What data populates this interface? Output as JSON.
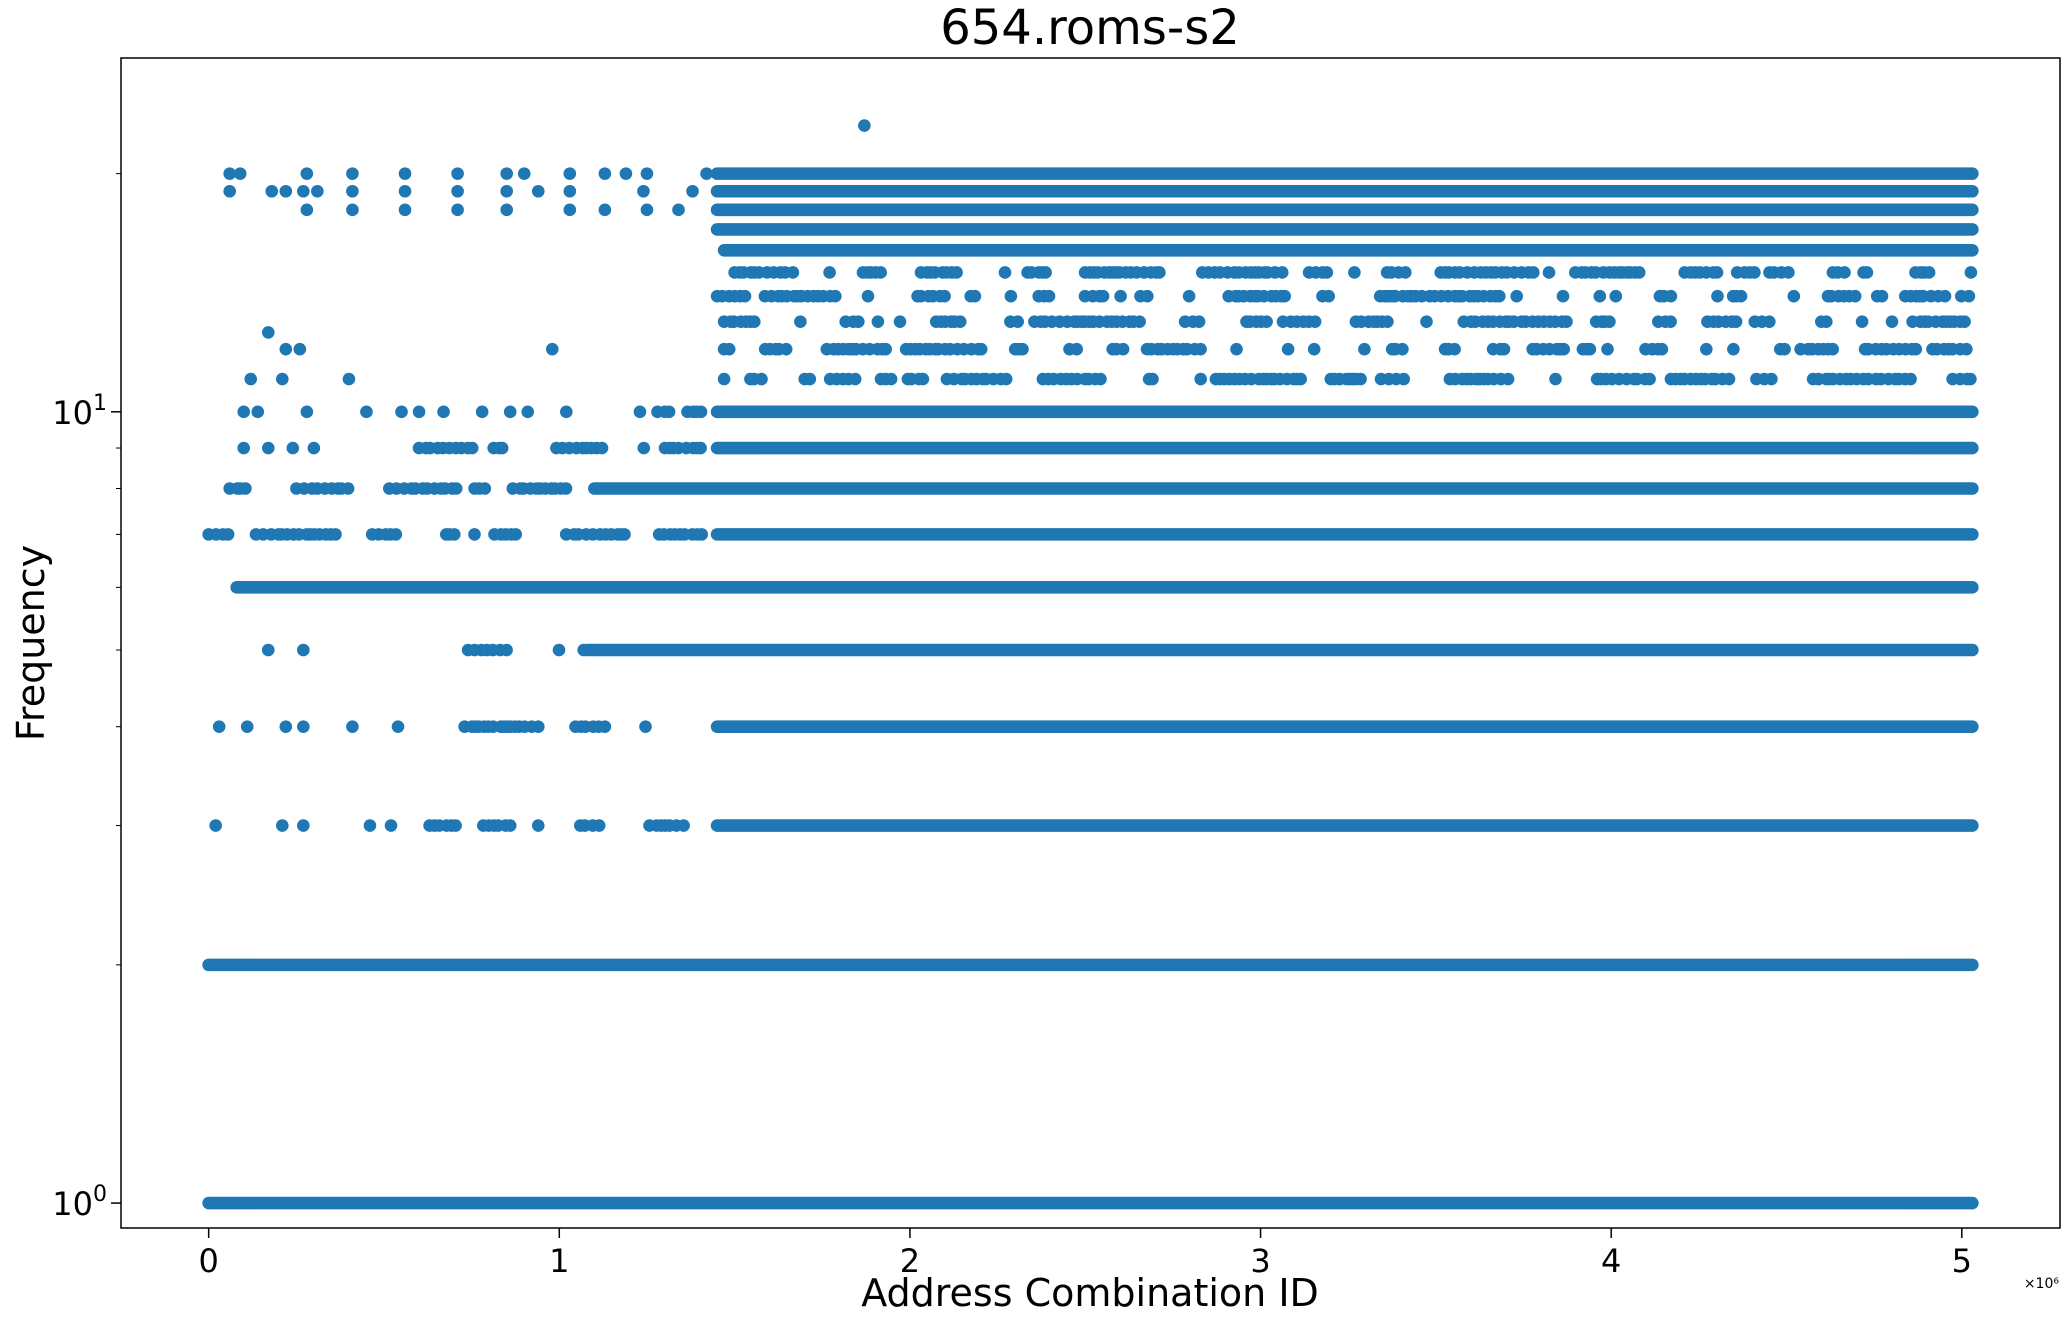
{
  "chart_data": {
    "type": "scatter",
    "title": "654.roms-s2",
    "xlabel": "Address Combination ID",
    "ylabel": "Frequency",
    "x_offset_label": "×10⁶",
    "xscale": "linear",
    "yscale": "log",
    "xlim": [
      -250000,
      5280000
    ],
    "ylim": [
      0.93,
      28
    ],
    "grid": false,
    "legend": "none",
    "color": "#1f77b4",
    "x_ticks": [
      {
        "value": 0,
        "label": "0"
      },
      {
        "value": 1000000,
        "label": "1"
      },
      {
        "value": 2000000,
        "label": "2"
      },
      {
        "value": 3000000,
        "label": "3"
      },
      {
        "value": 4000000,
        "label": "4"
      },
      {
        "value": 5000000,
        "label": "5"
      }
    ],
    "y_major_ticks": [
      {
        "value": 1,
        "base": "10",
        "exp": "0"
      },
      {
        "value": 10,
        "base": "10",
        "exp": "1"
      }
    ],
    "y_minor_ticks": [
      2,
      3,
      4,
      5,
      6,
      7,
      8,
      9,
      20
    ],
    "series": [
      {
        "segments": [
          {
            "y": 1,
            "x_from": 0,
            "x_to": 5030000
          },
          {
            "y": 2,
            "x_from": 0,
            "x_to": 5030000
          },
          {
            "y": 3,
            "x_from": 1450000,
            "x_to": 5030000
          },
          {
            "y": 3,
            "x_from": 1060000,
            "x_to": 1450000,
            "sparse": true
          },
          {
            "y": 3,
            "x_from": 630000,
            "x_to": 850000,
            "sparse": true
          },
          {
            "y": 4,
            "x_from": 1450000,
            "x_to": 5030000
          },
          {
            "y": 4,
            "x_from": 730000,
            "x_to": 1250000,
            "sparse": true
          },
          {
            "y": 5,
            "x_from": 1080000,
            "x_to": 5030000
          },
          {
            "y": 5,
            "x_from": 740000,
            "x_to": 1080000,
            "sparse": true
          },
          {
            "y": 6,
            "x_from": 80000,
            "x_to": 5030000
          },
          {
            "y": 7,
            "x_from": 1450000,
            "x_to": 5030000
          },
          {
            "y": 7,
            "x_from": 0,
            "x_to": 1450000,
            "sparse": true
          },
          {
            "y": 8,
            "x_from": 1100000,
            "x_to": 5030000
          },
          {
            "y": 8,
            "x_from": 60000,
            "x_to": 1100000,
            "sparse": true
          },
          {
            "y": 9,
            "x_from": 1450000,
            "x_to": 5030000
          },
          {
            "y": 9,
            "x_from": 600000,
            "x_to": 1450000,
            "sparse": true
          },
          {
            "y": 10,
            "x_from": 1450000,
            "x_to": 5030000
          },
          {
            "y": 10,
            "x_from": 1280000,
            "x_to": 1450000,
            "sparse": true
          },
          {
            "y": 11,
            "x_from": 1470000,
            "x_to": 5030000,
            "sparse": true
          },
          {
            "y": 12,
            "x_from": 1470000,
            "x_to": 5030000,
            "sparse": true
          },
          {
            "y": 13,
            "x_from": 1470000,
            "x_to": 5030000,
            "sparse": true
          },
          {
            "y": 14,
            "x_from": 1450000,
            "x_to": 5030000,
            "sparse": true
          },
          {
            "y": 15,
            "x_from": 1500000,
            "x_to": 5030000,
            "sparse": true
          },
          {
            "y": 16,
            "x_from": 1470000,
            "x_to": 5030000
          },
          {
            "y": 17,
            "x_from": 1450000,
            "x_to": 5030000
          },
          {
            "y": 18,
            "x_from": 1450000,
            "x_to": 5030000
          },
          {
            "y": 19,
            "x_from": 1450000,
            "x_to": 5030000
          },
          {
            "y": 20,
            "x_from": 1450000,
            "x_to": 5030000
          }
        ],
        "points": [
          {
            "x": 1870000,
            "y": 23
          },
          {
            "x": 60000,
            "y": 20
          },
          {
            "x": 90000,
            "y": 20
          },
          {
            "x": 280000,
            "y": 20
          },
          {
            "x": 410000,
            "y": 20
          },
          {
            "x": 560000,
            "y": 20
          },
          {
            "x": 710000,
            "y": 20
          },
          {
            "x": 850000,
            "y": 20
          },
          {
            "x": 900000,
            "y": 20
          },
          {
            "x": 1030000,
            "y": 20
          },
          {
            "x": 1130000,
            "y": 20
          },
          {
            "x": 1190000,
            "y": 20
          },
          {
            "x": 1250000,
            "y": 20
          },
          {
            "x": 1420000,
            "y": 20
          },
          {
            "x": 60000,
            "y": 19
          },
          {
            "x": 180000,
            "y": 19
          },
          {
            "x": 220000,
            "y": 19
          },
          {
            "x": 270000,
            "y": 19
          },
          {
            "x": 310000,
            "y": 19
          },
          {
            "x": 410000,
            "y": 19
          },
          {
            "x": 560000,
            "y": 19
          },
          {
            "x": 710000,
            "y": 19
          },
          {
            "x": 850000,
            "y": 19
          },
          {
            "x": 940000,
            "y": 19
          },
          {
            "x": 1030000,
            "y": 19
          },
          {
            "x": 1240000,
            "y": 19
          },
          {
            "x": 1380000,
            "y": 19
          },
          {
            "x": 280000,
            "y": 18
          },
          {
            "x": 410000,
            "y": 18
          },
          {
            "x": 560000,
            "y": 18
          },
          {
            "x": 710000,
            "y": 18
          },
          {
            "x": 850000,
            "y": 18
          },
          {
            "x": 1030000,
            "y": 18
          },
          {
            "x": 1130000,
            "y": 18
          },
          {
            "x": 1250000,
            "y": 18
          },
          {
            "x": 1340000,
            "y": 18
          },
          {
            "x": 170000,
            "y": 12.6
          },
          {
            "x": 220000,
            "y": 12
          },
          {
            "x": 260000,
            "y": 12
          },
          {
            "x": 980000,
            "y": 12
          },
          {
            "x": 120000,
            "y": 11
          },
          {
            "x": 210000,
            "y": 11
          },
          {
            "x": 400000,
            "y": 11
          },
          {
            "x": 100000,
            "y": 10
          },
          {
            "x": 140000,
            "y": 10
          },
          {
            "x": 280000,
            "y": 10
          },
          {
            "x": 450000,
            "y": 10
          },
          {
            "x": 550000,
            "y": 10
          },
          {
            "x": 600000,
            "y": 10
          },
          {
            "x": 670000,
            "y": 10
          },
          {
            "x": 780000,
            "y": 10
          },
          {
            "x": 860000,
            "y": 10
          },
          {
            "x": 910000,
            "y": 10
          },
          {
            "x": 1020000,
            "y": 10
          },
          {
            "x": 1230000,
            "y": 10
          },
          {
            "x": 100000,
            "y": 9
          },
          {
            "x": 170000,
            "y": 9
          },
          {
            "x": 240000,
            "y": 9
          },
          {
            "x": 300000,
            "y": 9
          },
          {
            "x": 170000,
            "y": 5
          },
          {
            "x": 270000,
            "y": 5
          },
          {
            "x": 30000,
            "y": 4
          },
          {
            "x": 110000,
            "y": 4
          },
          {
            "x": 220000,
            "y": 4
          },
          {
            "x": 270000,
            "y": 4
          },
          {
            "x": 410000,
            "y": 4
          },
          {
            "x": 540000,
            "y": 4
          },
          {
            "x": 20000,
            "y": 3
          },
          {
            "x": 210000,
            "y": 3
          },
          {
            "x": 270000,
            "y": 3
          },
          {
            "x": 460000,
            "y": 3
          },
          {
            "x": 520000,
            "y": 3
          },
          {
            "x": 860000,
            "y": 3
          },
          {
            "x": 940000,
            "y": 3
          }
        ]
      }
    ]
  }
}
